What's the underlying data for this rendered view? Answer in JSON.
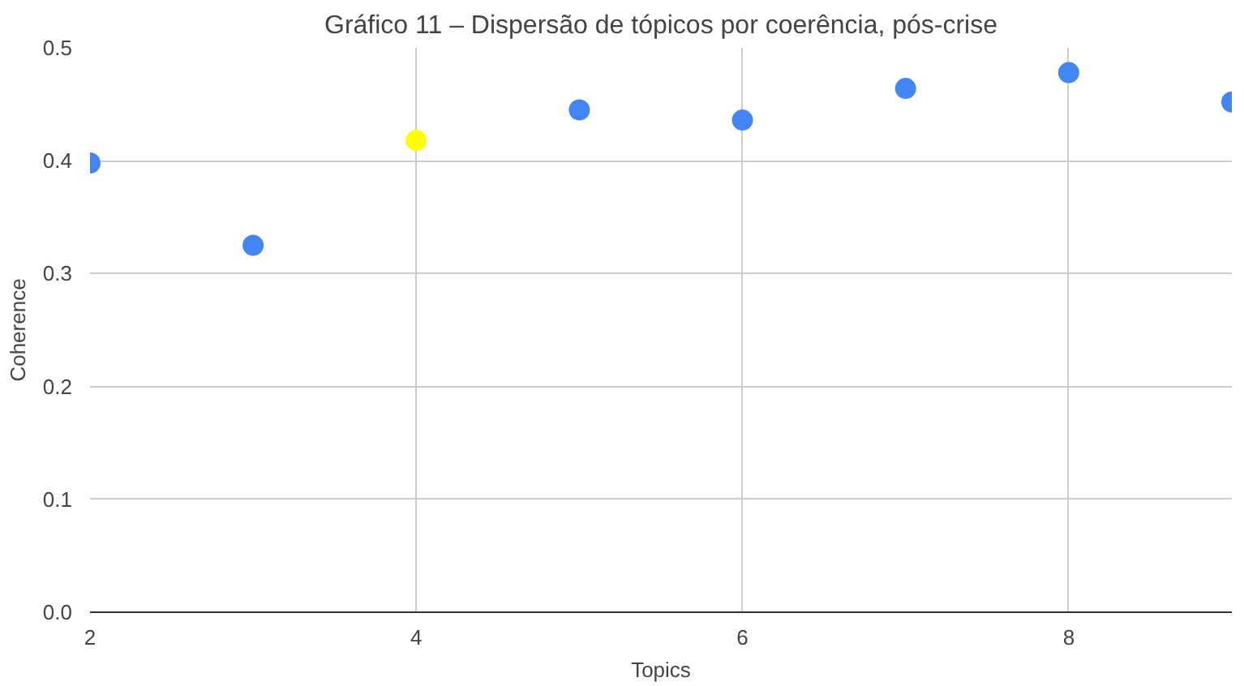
{
  "chart_data": {
    "type": "scatter",
    "title": "Gráfico 11 – Dispersão de tópicos por coerência, pós-crise",
    "xlabel": "Topics",
    "ylabel": "Coherence",
    "x": [
      2,
      3,
      4,
      5,
      6,
      7,
      8,
      9
    ],
    "values": [
      0.398,
      0.325,
      0.418,
      0.445,
      0.436,
      0.464,
      0.478,
      0.452
    ],
    "colors": [
      "#4285f4",
      "#4285f4",
      "#ffff00",
      "#4285f4",
      "#4285f4",
      "#4285f4",
      "#4285f4",
      "#4285f4"
    ],
    "xlim": [
      2,
      9
    ],
    "xticks": [
      2,
      4,
      6,
      8
    ],
    "ylim": [
      0,
      0.5
    ],
    "yticks": [
      {
        "value": 0,
        "label": "0.0"
      },
      0.1,
      0.2,
      0.3,
      0.4,
      0.5
    ],
    "grid": true,
    "marker": "circle"
  }
}
